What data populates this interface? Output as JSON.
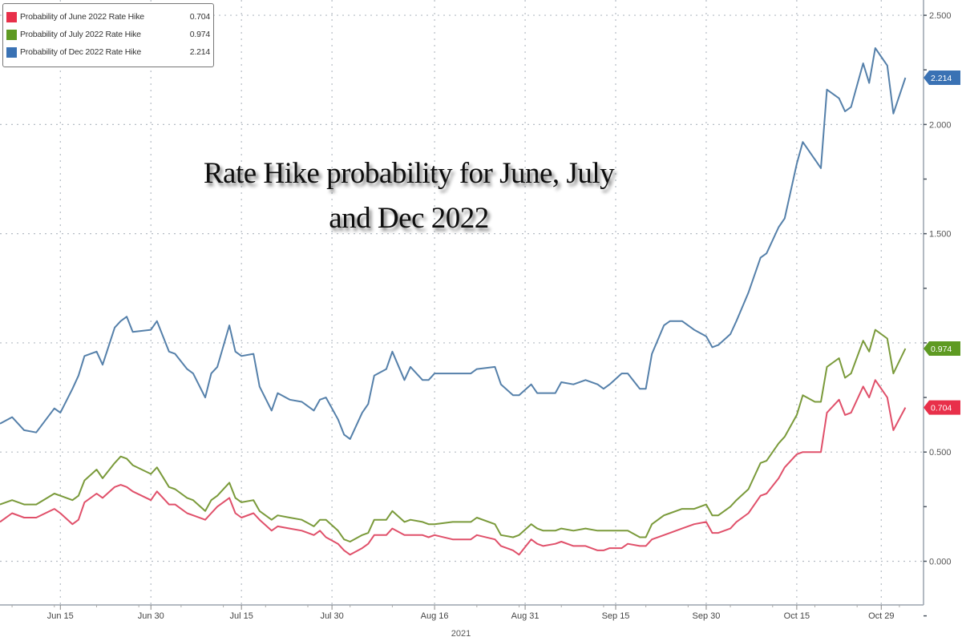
{
  "chart_data": {
    "type": "line",
    "title": [
      "Rate Hike probability for June, July",
      "and Dec 2022"
    ],
    "xlabel": "2021",
    "ylabel": "",
    "xlim": [
      "2021-06-05",
      "2021-11-05"
    ],
    "ylim": [
      -0.2,
      2.57
    ],
    "y_axis_side": "right",
    "grid": true,
    "legend_position": "top-left",
    "x_ticks": [
      {
        "date": "2021-06-15",
        "label": "Jun 15"
      },
      {
        "date": "2021-06-30",
        "label": "Jun 30"
      },
      {
        "date": "2021-07-15",
        "label": "Jul 15"
      },
      {
        "date": "2021-07-30",
        "label": "Jul 30"
      },
      {
        "date": "2021-08-16",
        "label": "Aug 16"
      },
      {
        "date": "2021-08-31",
        "label": "Aug 31"
      },
      {
        "date": "2021-09-15",
        "label": "Sep 15"
      },
      {
        "date": "2021-09-30",
        "label": "Sep 30"
      },
      {
        "date": "2021-10-15",
        "label": "Oct 15"
      },
      {
        "date": "2021-10-29",
        "label": "Oct 29"
      }
    ],
    "y_ticks": [
      {
        "value": 2.5,
        "label": "2.500"
      },
      {
        "value": 2.0,
        "label": "2.000"
      },
      {
        "value": 1.5,
        "label": "1.500"
      },
      {
        "value": 0.5,
        "label": "0.500"
      },
      {
        "value": 0.0,
        "label": "0.000"
      }
    ],
    "x": [
      "2021-06-05",
      "2021-06-07",
      "2021-06-09",
      "2021-06-11",
      "2021-06-14",
      "2021-06-15",
      "2021-06-17",
      "2021-06-18",
      "2021-06-19",
      "2021-06-21",
      "2021-06-22",
      "2021-06-24",
      "2021-06-25",
      "2021-06-26",
      "2021-06-27",
      "2021-06-30",
      "2021-07-01",
      "2021-07-03",
      "2021-07-04",
      "2021-07-06",
      "2021-07-07",
      "2021-07-09",
      "2021-07-10",
      "2021-07-11",
      "2021-07-13",
      "2021-07-14",
      "2021-07-15",
      "2021-07-17",
      "2021-07-18",
      "2021-07-20",
      "2021-07-21",
      "2021-07-23",
      "2021-07-25",
      "2021-07-27",
      "2021-07-28",
      "2021-07-29",
      "2021-07-31",
      "2021-08-01",
      "2021-08-02",
      "2021-08-04",
      "2021-08-05",
      "2021-08-06",
      "2021-08-08",
      "2021-08-09",
      "2021-08-11",
      "2021-08-12",
      "2021-08-14",
      "2021-08-15",
      "2021-08-16",
      "2021-08-19",
      "2021-08-22",
      "2021-08-23",
      "2021-08-26",
      "2021-08-27",
      "2021-08-29",
      "2021-08-30",
      "2021-09-01",
      "2021-09-02",
      "2021-09-03",
      "2021-09-05",
      "2021-09-06",
      "2021-09-08",
      "2021-09-10",
      "2021-09-12",
      "2021-09-13",
      "2021-09-14",
      "2021-09-16",
      "2021-09-17",
      "2021-09-19",
      "2021-09-20",
      "2021-09-21",
      "2021-09-23",
      "2021-09-24",
      "2021-09-26",
      "2021-09-28",
      "2021-09-30",
      "2021-10-01",
      "2021-10-02",
      "2021-10-04",
      "2021-10-05",
      "2021-10-07",
      "2021-10-09",
      "2021-10-10",
      "2021-10-12",
      "2021-10-13",
      "2021-10-15",
      "2021-10-16",
      "2021-10-18",
      "2021-10-19",
      "2021-10-20",
      "2021-10-22",
      "2021-10-23",
      "2021-10-24",
      "2021-10-26",
      "2021-10-27",
      "2021-10-28",
      "2021-10-30",
      "2021-10-31",
      "2021-11-02"
    ],
    "series": [
      {
        "name": "Probability of June 2022 Rate Hike",
        "last_value": "0.704",
        "color": "#e8304a",
        "line_color": "#e0506a",
        "values": [
          0.18,
          0.22,
          0.2,
          0.2,
          0.24,
          0.22,
          0.17,
          0.19,
          0.27,
          0.31,
          0.29,
          0.34,
          0.35,
          0.34,
          0.32,
          0.28,
          0.32,
          0.26,
          0.26,
          0.22,
          0.21,
          0.19,
          0.22,
          0.25,
          0.29,
          0.22,
          0.2,
          0.22,
          0.19,
          0.14,
          0.16,
          0.15,
          0.14,
          0.12,
          0.14,
          0.11,
          0.08,
          0.05,
          0.03,
          0.06,
          0.08,
          0.12,
          0.12,
          0.15,
          0.12,
          0.12,
          0.12,
          0.11,
          0.12,
          0.1,
          0.1,
          0.12,
          0.1,
          0.07,
          0.05,
          0.03,
          0.1,
          0.08,
          0.07,
          0.08,
          0.09,
          0.07,
          0.07,
          0.05,
          0.05,
          0.06,
          0.06,
          0.08,
          0.07,
          0.07,
          0.1,
          0.12,
          0.13,
          0.15,
          0.17,
          0.18,
          0.13,
          0.13,
          0.15,
          0.18,
          0.22,
          0.3,
          0.31,
          0.38,
          0.43,
          0.49,
          0.5,
          0.5,
          0.5,
          0.68,
          0.74,
          0.67,
          0.68,
          0.8,
          0.75,
          0.83,
          0.75,
          0.6,
          0.704
        ]
      },
      {
        "name": "Probability of July 2022 Rate Hike",
        "last_value": "0.974",
        "color": "#5e9a22",
        "line_color": "#7a9a3a",
        "values": [
          0.26,
          0.28,
          0.26,
          0.26,
          0.31,
          0.3,
          0.28,
          0.3,
          0.37,
          0.42,
          0.38,
          0.45,
          0.48,
          0.47,
          0.44,
          0.4,
          0.43,
          0.34,
          0.33,
          0.29,
          0.28,
          0.23,
          0.28,
          0.3,
          0.36,
          0.29,
          0.27,
          0.28,
          0.23,
          0.19,
          0.21,
          0.2,
          0.19,
          0.16,
          0.19,
          0.19,
          0.14,
          0.1,
          0.09,
          0.12,
          0.13,
          0.19,
          0.19,
          0.23,
          0.18,
          0.19,
          0.18,
          0.17,
          0.17,
          0.18,
          0.18,
          0.2,
          0.17,
          0.12,
          0.11,
          0.12,
          0.17,
          0.15,
          0.14,
          0.14,
          0.15,
          0.14,
          0.15,
          0.14,
          0.14,
          0.14,
          0.14,
          0.14,
          0.11,
          0.11,
          0.17,
          0.21,
          0.22,
          0.24,
          0.24,
          0.26,
          0.21,
          0.21,
          0.25,
          0.28,
          0.33,
          0.45,
          0.46,
          0.54,
          0.57,
          0.67,
          0.76,
          0.73,
          0.73,
          0.89,
          0.93,
          0.84,
          0.86,
          1.01,
          0.96,
          1.06,
          1.02,
          0.86,
          0.974
        ]
      },
      {
        "name": "Probability of Dec 2022 Rate Hike",
        "last_value": "2.214",
        "color": "#3a72b4",
        "line_color": "#5580aa",
        "values": [
          0.63,
          0.66,
          0.6,
          0.59,
          0.7,
          0.68,
          0.79,
          0.85,
          0.94,
          0.96,
          0.9,
          1.07,
          1.1,
          1.12,
          1.05,
          1.06,
          1.1,
          0.96,
          0.95,
          0.88,
          0.86,
          0.75,
          0.86,
          0.89,
          1.08,
          0.96,
          0.94,
          0.95,
          0.8,
          0.69,
          0.77,
          0.74,
          0.73,
          0.69,
          0.74,
          0.75,
          0.65,
          0.58,
          0.56,
          0.68,
          0.72,
          0.85,
          0.88,
          0.96,
          0.83,
          0.89,
          0.83,
          0.83,
          0.86,
          0.86,
          0.86,
          0.88,
          0.89,
          0.81,
          0.76,
          0.76,
          0.81,
          0.77,
          0.77,
          0.77,
          0.82,
          0.81,
          0.83,
          0.81,
          0.79,
          0.81,
          0.86,
          0.86,
          0.79,
          0.79,
          0.95,
          1.08,
          1.1,
          1.1,
          1.06,
          1.03,
          0.98,
          0.99,
          1.04,
          1.1,
          1.23,
          1.39,
          1.41,
          1.53,
          1.57,
          1.82,
          1.92,
          1.84,
          1.8,
          2.16,
          2.12,
          2.06,
          2.08,
          2.28,
          2.19,
          2.35,
          2.27,
          2.05,
          2.214
        ]
      }
    ]
  }
}
